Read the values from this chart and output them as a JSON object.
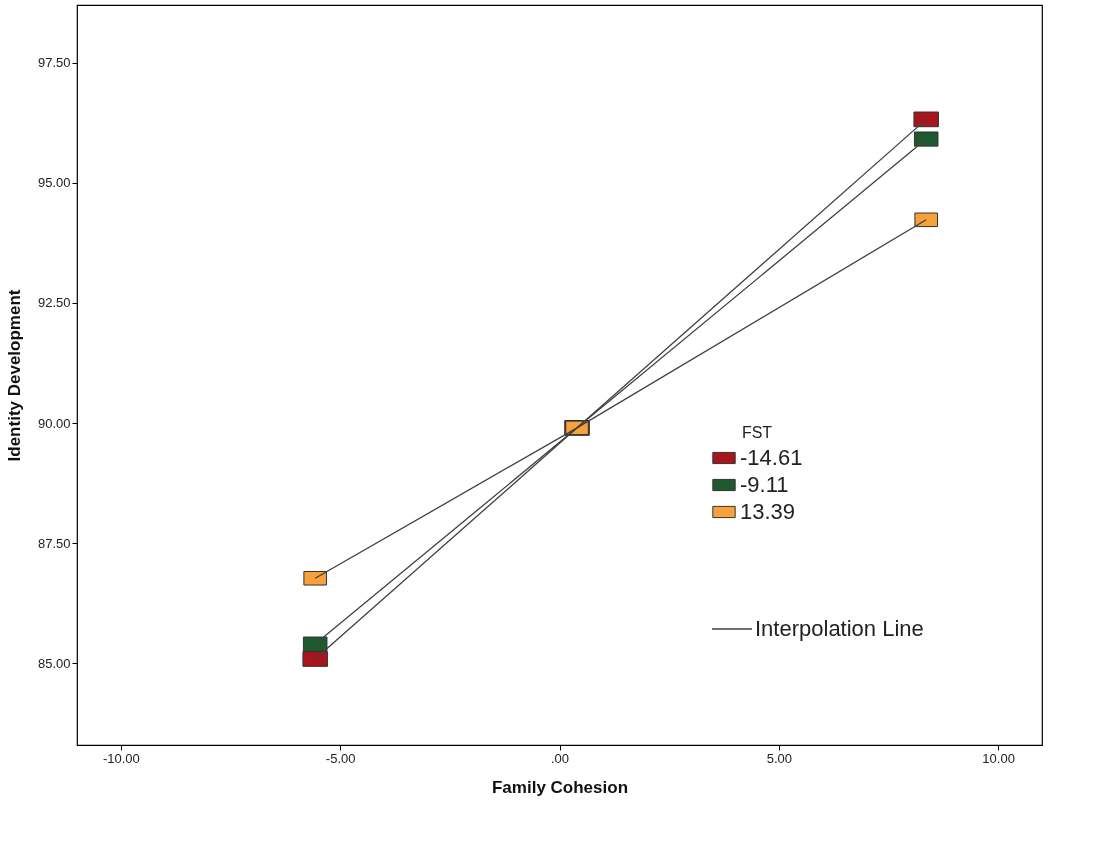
{
  "chart_data": {
    "type": "line",
    "xlabel": "Family Cohesion",
    "ylabel": "Identity Development",
    "legend_title": "FST",
    "x": [
      -5.57,
      0.4,
      8.36
    ],
    "series": [
      {
        "name": "-14.61",
        "color": "#a8151c",
        "values": [
          85.09,
          89.9,
          96.32
        ]
      },
      {
        "name": "-9.11",
        "color": "#1f5a2e",
        "values": [
          85.4,
          89.9,
          95.91
        ]
      },
      {
        "name": "13.39",
        "color": "#f7a13c",
        "values": [
          86.77,
          89.9,
          94.23
        ]
      }
    ],
    "xlim": [
      -11,
      11
    ],
    "xticks": [
      {
        "value": -10,
        "label": "-10.00"
      },
      {
        "value": -5,
        "label": "-5.00"
      },
      {
        "value": 0,
        "label": ".00"
      },
      {
        "value": 5,
        "label": "5.00"
      },
      {
        "value": 10,
        "label": "10.00"
      }
    ],
    "ylim": [
      83.3,
      98.7
    ],
    "yticks": [
      {
        "value": 85,
        "label": "85.00"
      },
      {
        "value": 87.5,
        "label": "87.50"
      },
      {
        "value": 90,
        "label": "90.00"
      },
      {
        "value": 92.5,
        "label": "92.50"
      },
      {
        "value": 95,
        "label": "95.00"
      },
      {
        "value": 97.5,
        "label": "97.50"
      }
    ],
    "annotations": [
      "Interpolation Line"
    ],
    "legend": "bottom right",
    "marker": "square",
    "line_style": "solid",
    "grid": false
  }
}
